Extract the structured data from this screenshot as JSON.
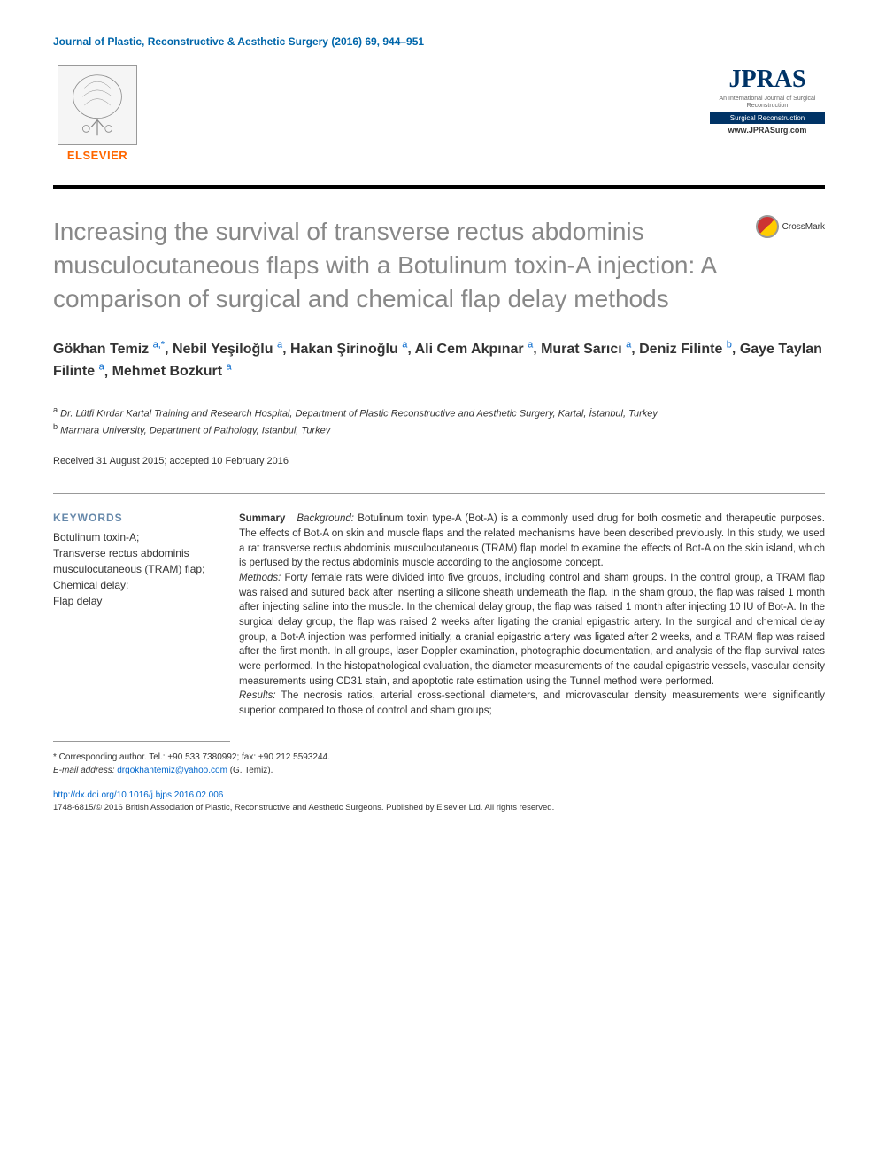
{
  "journal_citation": "Journal of Plastic, Reconstructive & Aesthetic Surgery (2016) 69, 944–951",
  "elsevier_label": "ELSEVIER",
  "jpras": {
    "title": "JPRAS",
    "subtitle": "An International Journal of Surgical Reconstruction",
    "url": "www.JPRASurg.com"
  },
  "crossmark_label": "CrossMark",
  "article_title": "Increasing the survival of transverse rectus abdominis musculocutaneous flaps with a Botulinum toxin-A injection: A comparison of surgical and chemical flap delay methods",
  "authors": [
    {
      "name": "Gökhan Temiz",
      "marks": "a,*"
    },
    {
      "name": "Nebil Yeşiloğlu",
      "marks": "a"
    },
    {
      "name": "Hakan Şirinoğlu",
      "marks": "a"
    },
    {
      "name": "Ali Cem Akpınar",
      "marks": "a"
    },
    {
      "name": "Murat Sarıcı",
      "marks": "a"
    },
    {
      "name": "Deniz Filinte",
      "marks": "b"
    },
    {
      "name": "Gaye Taylan Filinte",
      "marks": "a"
    },
    {
      "name": "Mehmet Bozkurt",
      "marks": "a"
    }
  ],
  "affiliations": [
    {
      "mark": "a",
      "text": "Dr. Lütfi Kırdar Kartal Training and Research Hospital, Department of Plastic Reconstructive and Aesthetic Surgery, Kartal, İstanbul, Turkey"
    },
    {
      "mark": "b",
      "text": "Marmara University, Department of Pathology, Istanbul, Turkey"
    }
  ],
  "dates": "Received 31 August 2015; accepted 10 February 2016",
  "keywords_title": "KEYWORDS",
  "keywords": "Botulinum toxin-A;\nTransverse rectus abdominis musculocutaneous (TRAM) flap;\nChemical delay;\nFlap delay",
  "abstract": {
    "summary_label": "Summary",
    "background_label": "Background:",
    "background": "Botulinum toxin type-A (Bot-A) is a commonly used drug for both cosmetic and therapeutic purposes. The effects of Bot-A on skin and muscle flaps and the related mechanisms have been described previously. In this study, we used a rat transverse rectus abdominis musculocutaneous (TRAM) flap model to examine the effects of Bot-A on the skin island, which is perfused by the rectus abdominis muscle according to the angiosome concept.",
    "methods_label": "Methods:",
    "methods": "Forty female rats were divided into five groups, including control and sham groups. In the control group, a TRAM flap was raised and sutured back after inserting a silicone sheath underneath the flap. In the sham group, the flap was raised 1 month after injecting saline into the muscle. In the chemical delay group, the flap was raised 1 month after injecting 10 IU of Bot-A. In the surgical delay group, the flap was raised 2 weeks after ligating the cranial epigastric artery. In the surgical and chemical delay group, a Bot-A injection was performed initially, a cranial epigastric artery was ligated after 2 weeks, and a TRAM flap was raised after the first month. In all groups, laser Doppler examination, photographic documentation, and analysis of the flap survival rates were performed. In the histopathological evaluation, the diameter measurements of the caudal epigastric vessels, vascular density measurements using CD31 stain, and apoptotic rate estimation using the Tunnel method were performed.",
    "results_label": "Results:",
    "results": "The necrosis ratios, arterial cross-sectional diameters, and microvascular density measurements were significantly superior compared to those of control and sham groups;"
  },
  "corresponding": {
    "label": "* Corresponding author. Tel.: +90 533 7380992; fax: +90 212 5593244.",
    "email_label": "E-mail address:",
    "email": "drgokhantemiz@yahoo.com",
    "email_name": "(G. Temiz)."
  },
  "doi": "http://dx.doi.org/10.1016/j.bjps.2016.02.006",
  "copyright": "1748-6815/© 2016 British Association of Plastic, Reconstructive and Aesthetic Surgeons. Published by Elsevier Ltd. All rights reserved.",
  "colors": {
    "link": "#0066cc",
    "title_gray": "#888888",
    "elsevier_orange": "#ff6600",
    "jpras_navy": "#003366",
    "keyword_header": "#6688aa"
  }
}
